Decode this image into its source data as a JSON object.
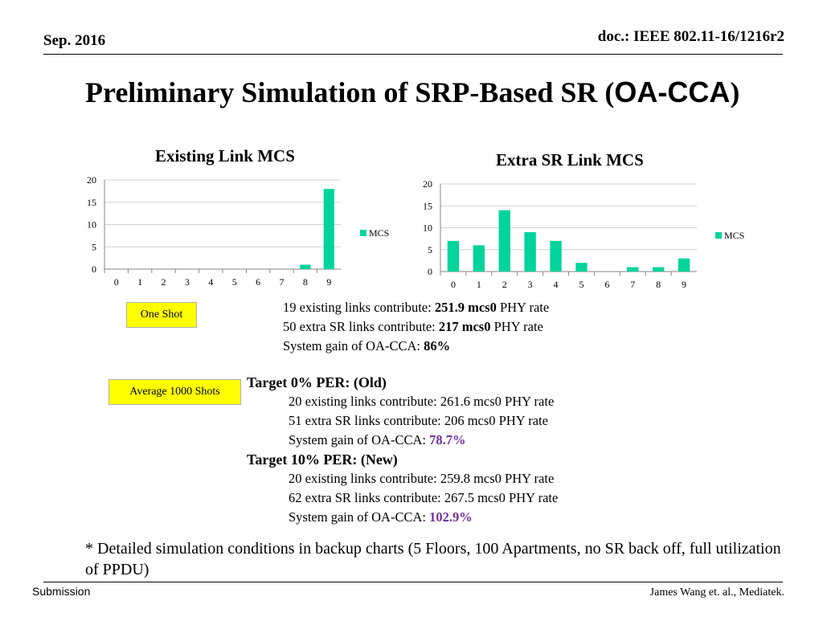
{
  "header": {
    "date": "Sep. 2016",
    "doc": "doc.: IEEE 802.11-16/1216r2"
  },
  "title": {
    "main": "Preliminary Simulation of SRP-Based SR (",
    "sans": "OA-CCA",
    "close": ")"
  },
  "charts": [
    {
      "title": "Existing Link MCS",
      "chart_data": {
        "type": "bar",
        "title": "Existing Link MCS",
        "categories": [
          "0",
          "1",
          "2",
          "3",
          "4",
          "5",
          "6",
          "7",
          "8",
          "9"
        ],
        "series": [
          {
            "name": "MCS",
            "values": [
              0,
              0,
              0,
              0,
              0,
              0,
              0,
              0,
              1,
              18
            ]
          }
        ],
        "ylim": [
          0,
          20
        ],
        "yticks": [
          "0",
          "5",
          "10",
          "15",
          "20"
        ],
        "legend": "right",
        "grid": true,
        "color": "#00d49c"
      }
    },
    {
      "title": "Extra SR Link MCS",
      "chart_data": {
        "type": "bar",
        "title": "Extra SR Link MCS",
        "categories": [
          "0",
          "1",
          "2",
          "3",
          "4",
          "5",
          "6",
          "7",
          "8",
          "9"
        ],
        "series": [
          {
            "name": "MCS",
            "values": [
              7,
              6,
              14,
              9,
              7,
              2,
              0,
              1,
              1,
              3
            ]
          }
        ],
        "ylim": [
          0,
          20
        ],
        "yticks": [
          "0",
          "5",
          "10",
          "15",
          "20"
        ],
        "legend": "right",
        "grid": true,
        "color": "#00d49c"
      }
    }
  ],
  "one_shot": {
    "tag": "One Shot",
    "lines": [
      {
        "pre": "19 existing links contribute: ",
        "bold": "251.9 mcs0",
        "post": " PHY rate"
      },
      {
        "pre": "50 extra SR links contribute: ",
        "bold": "217 mcs0",
        "post": " PHY rate"
      },
      {
        "pre": "System gain of OA-CCA: ",
        "bold": "86%",
        "post": ""
      }
    ]
  },
  "average": {
    "tag": "Average 1000 Shots",
    "old": {
      "head": "Target 0% PER: (Old)",
      "l1": "20 existing links contribute: 261.6 mcs0 PHY rate",
      "l2": "51 extra SR links contribute: 206 mcs0 PHY rate",
      "l3_pre": "System gain of OA-CCA: ",
      "l3_val": "78.7%"
    },
    "new": {
      "head": "Target 10% PER: (New)",
      "l1": "20 existing links contribute: 259.8 mcs0 PHY rate",
      "l2": "62 extra SR links contribute: 267.5 mcs0 PHY rate",
      "l3_pre": "System gain of OA-CCA: ",
      "l3_val": "102.9%"
    }
  },
  "note": "* Detailed simulation conditions in backup charts (5 Floors, 100 Apartments, no SR back off, full utilization of PPDU)",
  "footer": {
    "left": "Submission",
    "right": "James Wang et. al., Mediatek."
  }
}
